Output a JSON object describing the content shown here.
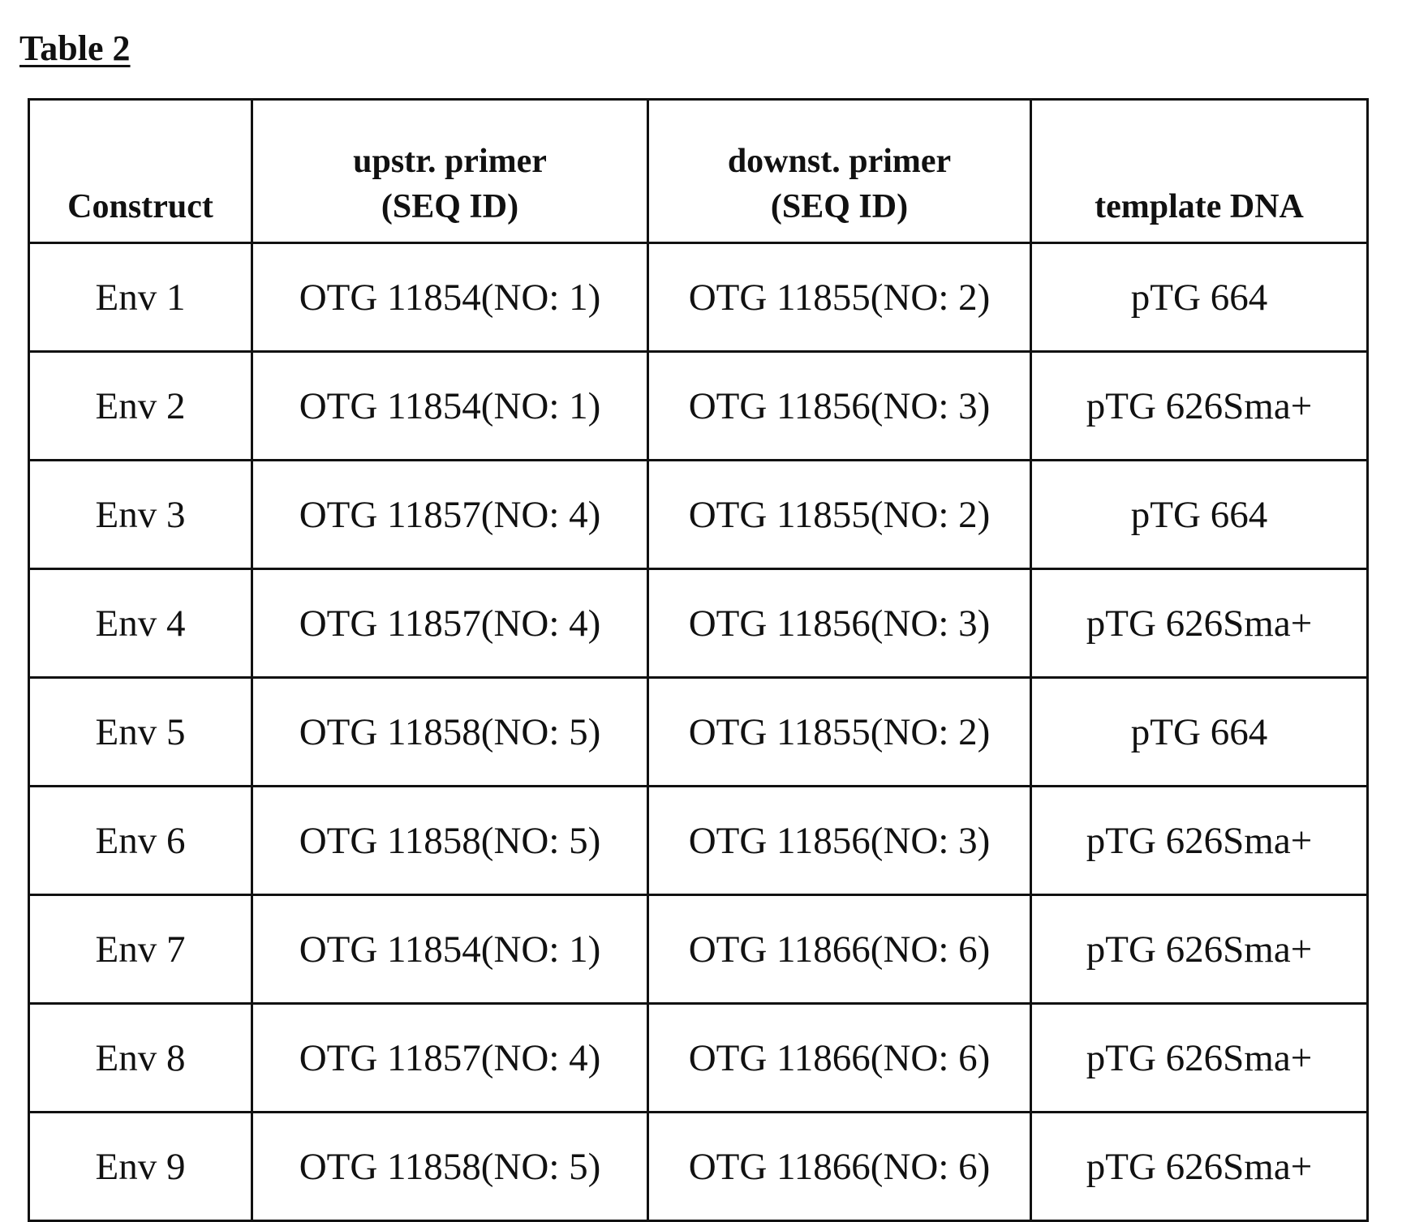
{
  "title": "Table 2",
  "table": {
    "headers": [
      {
        "line1": "",
        "line2": "Construct"
      },
      {
        "line1": "upstr. primer",
        "line2": "(SEQ ID)"
      },
      {
        "line1": "downst. primer",
        "line2": "(SEQ ID)"
      },
      {
        "line1": "",
        "line2": "template DNA"
      }
    ],
    "rows": [
      [
        "Env 1",
        "OTG 11854(NO: 1)",
        "OTG 11855(NO: 2)",
        "pTG 664"
      ],
      [
        "Env 2",
        "OTG 11854(NO: 1)",
        "OTG 11856(NO: 3)",
        "pTG 626Sma+"
      ],
      [
        "Env 3",
        "OTG 11857(NO: 4)",
        "OTG 11855(NO: 2)",
        "pTG 664"
      ],
      [
        "Env 4",
        "OTG 11857(NO: 4)",
        "OTG 11856(NO: 3)",
        "pTG 626Sma+"
      ],
      [
        "Env 5",
        "OTG 11858(NO: 5)",
        "OTG 11855(NO: 2)",
        "pTG 664"
      ],
      [
        "Env 6",
        "OTG 11858(NO: 5)",
        "OTG 11856(NO: 3)",
        "pTG 626Sma+"
      ],
      [
        "Env 7",
        "OTG 11854(NO: 1)",
        "OTG 11866(NO: 6)",
        "pTG 626Sma+"
      ],
      [
        "Env 8",
        "OTG 11857(NO: 4)",
        "OTG 11866(NO: 6)",
        "pTG 626Sma+"
      ],
      [
        "Env 9",
        "OTG 11858(NO: 5)",
        "OTG 11866(NO: 6)",
        "pTG 626Sma+"
      ]
    ]
  }
}
